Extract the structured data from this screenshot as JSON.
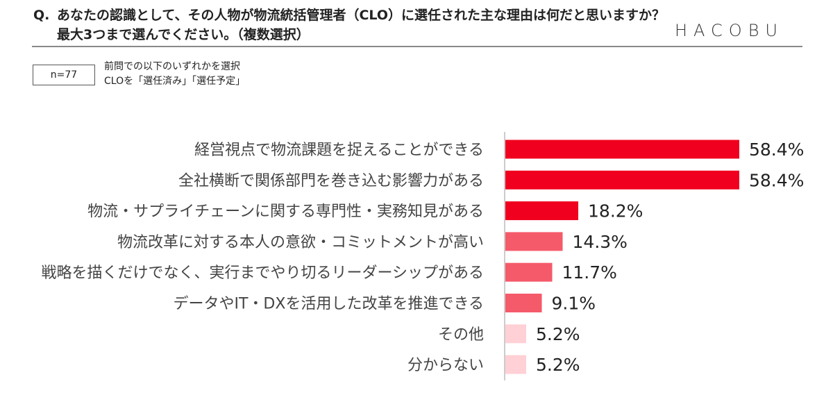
{
  "header": {
    "q_label": "Q.",
    "question": "あなたの認識として、その人物が物流統括管理者（CLO）に選任された主な理由は何だと思いますか？最大3つまで選んでください。（複数選択）",
    "logo": "HACOBU",
    "sample_size": "n=77",
    "note_line1": "前問での以下のいずれかを選択",
    "note_line2": "CLOを「選任済み」「選任予定」"
  },
  "chart_data": {
    "type": "bar",
    "orientation": "horizontal",
    "title": "",
    "xlabel": "",
    "ylabel": "",
    "xlim": [
      0,
      100
    ],
    "grid": false,
    "unit": "%",
    "categories": [
      "経営視点で物流課題を捉えることができる",
      "全社横断で関係部門を巻き込む影響力がある",
      "物流・サプライチェーンに関する専門性・実務知見がある",
      "物流改革に対する本人の意欲・コミットメントが高い",
      "戦略を描くだけでなく、実行までやり切るリーダーシップがある",
      "データやIT・DXを活用した改革を推進できる",
      "その他",
      "分からない"
    ],
    "values": [
      58.4,
      58.4,
      18.2,
      14.3,
      11.7,
      9.1,
      5.2,
      5.2
    ],
    "labels": [
      "58.4%",
      "58.4%",
      "18.2%",
      "14.3%",
      "11.7%",
      "9.1%",
      "5.2%",
      "5.2%"
    ],
    "colors": [
      "#f0001e",
      "#f0001e",
      "#f0001e",
      "#f55a6a",
      "#f55a6a",
      "#f55a6a",
      "#ffd0d5",
      "#ffd0d5"
    ]
  }
}
